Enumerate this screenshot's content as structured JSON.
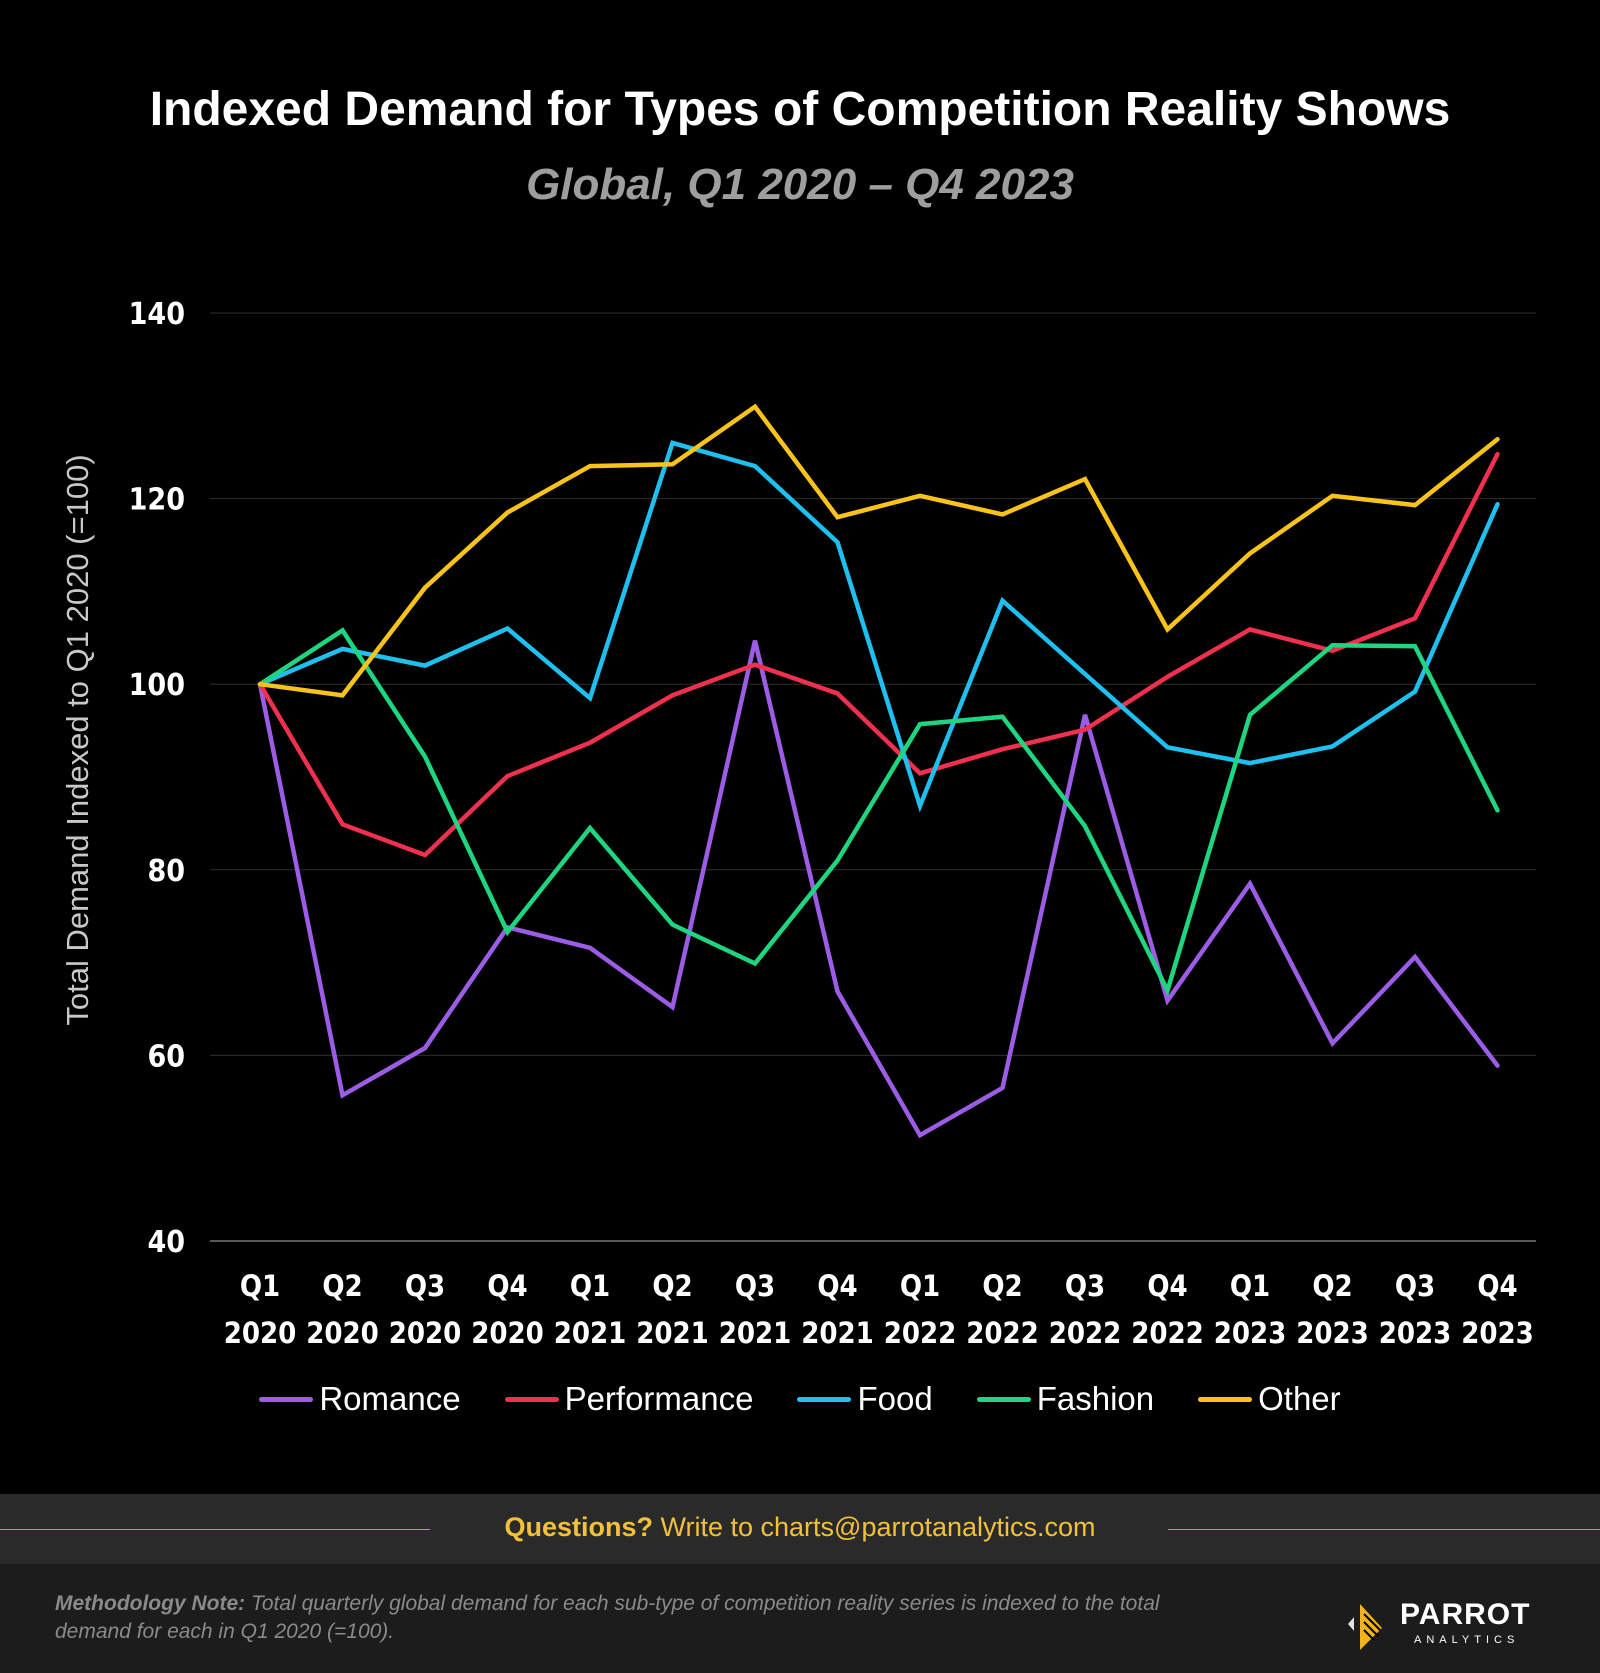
{
  "header": {
    "title": "Indexed Demand for Types of Competition Reality Shows",
    "subtitle": "Global, Q1 2020 – Q4 2023"
  },
  "chart_data": {
    "type": "line",
    "title": "Indexed Demand for Types of Competition Reality Shows",
    "subtitle": "Global, Q1 2020 – Q4 2023",
    "ylabel": "Total Demand Indexed to Q1 2020 (=100)",
    "xlabel": "",
    "ylim": [
      40,
      140
    ],
    "yticks": [
      40,
      60,
      80,
      100,
      120,
      140
    ],
    "grid": true,
    "legend_position": "bottom",
    "categories": [
      [
        "Q1",
        "2020"
      ],
      [
        "Q2",
        "2020"
      ],
      [
        "Q3",
        "2020"
      ],
      [
        "Q4",
        "2020"
      ],
      [
        "Q1",
        "2021"
      ],
      [
        "Q2",
        "2021"
      ],
      [
        "Q3",
        "2021"
      ],
      [
        "Q4",
        "2021"
      ],
      [
        "Q1",
        "2022"
      ],
      [
        "Q2",
        "2022"
      ],
      [
        "Q3",
        "2022"
      ],
      [
        "Q4",
        "2022"
      ],
      [
        "Q1",
        "2023"
      ],
      [
        "Q2",
        "2023"
      ],
      [
        "Q3",
        "2023"
      ],
      [
        "Q4",
        "2023"
      ]
    ],
    "series": [
      {
        "name": "Romance",
        "color": "#9b5de5",
        "values": [
          100,
          55.7,
          60.8,
          73.8,
          71.6,
          65.2,
          104.7,
          66.9,
          51.4,
          56.5,
          96.7,
          65.9,
          78.5,
          61.3,
          70.6,
          58.9
        ]
      },
      {
        "name": "Performance",
        "color": "#f0304f",
        "values": [
          100,
          84.9,
          81.6,
          90.1,
          93.7,
          98.8,
          102.1,
          99.0,
          90.4,
          93.0,
          95.1,
          100.8,
          105.9,
          103.6,
          107.1,
          124.8
        ]
      },
      {
        "name": "Food",
        "color": "#1ec0f0",
        "values": [
          100,
          103.8,
          102.0,
          106.0,
          98.5,
          126.0,
          123.5,
          115.3,
          86.9,
          109.0,
          101.1,
          93.2,
          91.5,
          93.3,
          99.2,
          119.4
        ]
      },
      {
        "name": "Fashion",
        "color": "#1ed67f",
        "values": [
          100,
          105.8,
          92.2,
          73.3,
          84.5,
          74.1,
          69.9,
          81.0,
          95.7,
          96.5,
          84.7,
          67.0,
          96.7,
          104.2,
          104.1,
          86.4
        ]
      },
      {
        "name": "Other",
        "color": "#f9c31a",
        "values": [
          100,
          98.8,
          110.4,
          118.5,
          123.5,
          123.7,
          129.9,
          118.0,
          120.3,
          118.3,
          122.1,
          105.9,
          114.1,
          120.3,
          119.3,
          126.4
        ]
      }
    ]
  },
  "footer": {
    "question_bold": "Questions?",
    "question_rest": " Write to charts@parrotanalytics.com"
  },
  "methodology": {
    "label": "Methodology Note:",
    "text": " Total quarterly global demand for each sub-type of competition reality series is indexed to the total demand for each in Q1 2020 (=100)."
  },
  "logo": {
    "word": "PARROT",
    "sub": "ANALYTICS"
  }
}
